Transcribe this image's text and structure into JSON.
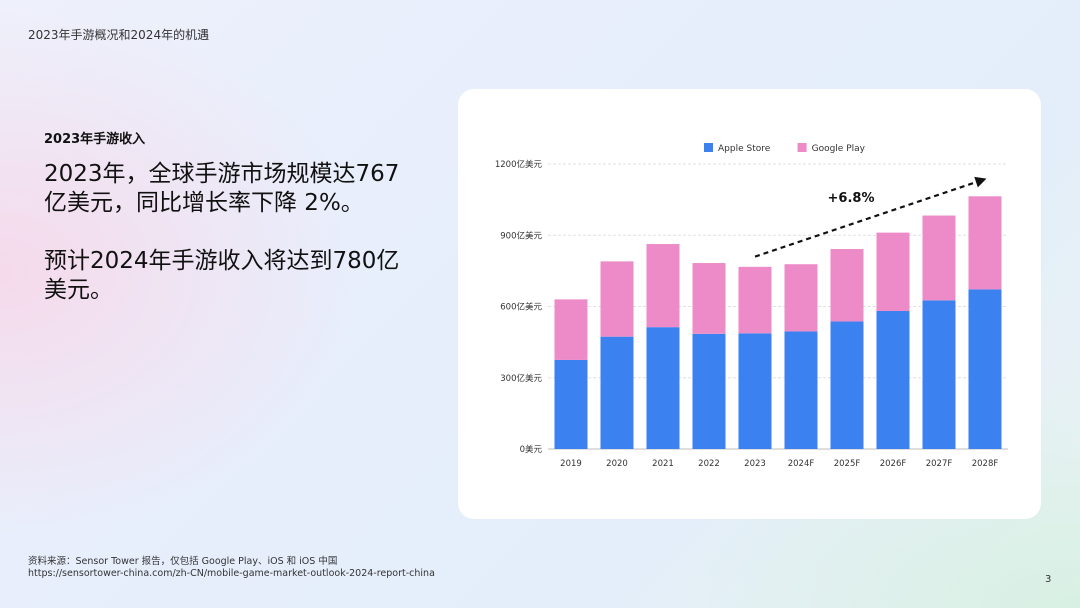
{
  "header": {
    "title": "2023年手游概况和2024年的机遇"
  },
  "section": {
    "label": "2023年手游收入"
  },
  "headline": {
    "paragraph_1": "2023年，全球手游市场规模达767亿美元，同比增长率下降 2%。",
    "paragraph_2": "预计2024年手游收入将达到780亿美元。"
  },
  "chart_data": {
    "type": "bar",
    "stacked": true,
    "categories": [
      "2019",
      "2020",
      "2021",
      "2022",
      "2023",
      "2024F",
      "2025F",
      "2026F",
      "2027F",
      "2028F"
    ],
    "series": [
      {
        "name": "Apple Store",
        "color": "#3b82f0",
        "values": [
          375,
          473,
          513,
          485,
          487,
          495,
          537,
          581,
          626,
          672
        ]
      },
      {
        "name": "Google Play",
        "color": "#ec8bc8",
        "values": [
          255,
          317,
          350,
          298,
          280,
          283,
          305,
          330,
          357,
          392
        ]
      }
    ],
    "ylim": [
      0,
      1200
    ],
    "yticks": [
      0,
      300,
      600,
      900,
      1200
    ],
    "ytick_labels": [
      "0美元",
      "300亿美元",
      "600亿美元",
      "900亿美元",
      "1200亿美元"
    ],
    "grid": true,
    "legend_position": "top-center",
    "annotation": {
      "text": "+6.8%",
      "from_category": "2023",
      "to_category": "2028F"
    }
  },
  "footer": {
    "source": "资料来源：Sensor Tower 报告，仅包括 Google Play、iOS 和 iOS 中国",
    "url": "https://sensortower-china.com/zh-CN/mobile-game-market-outlook-2024-report-china"
  },
  "page": {
    "number": "3"
  }
}
